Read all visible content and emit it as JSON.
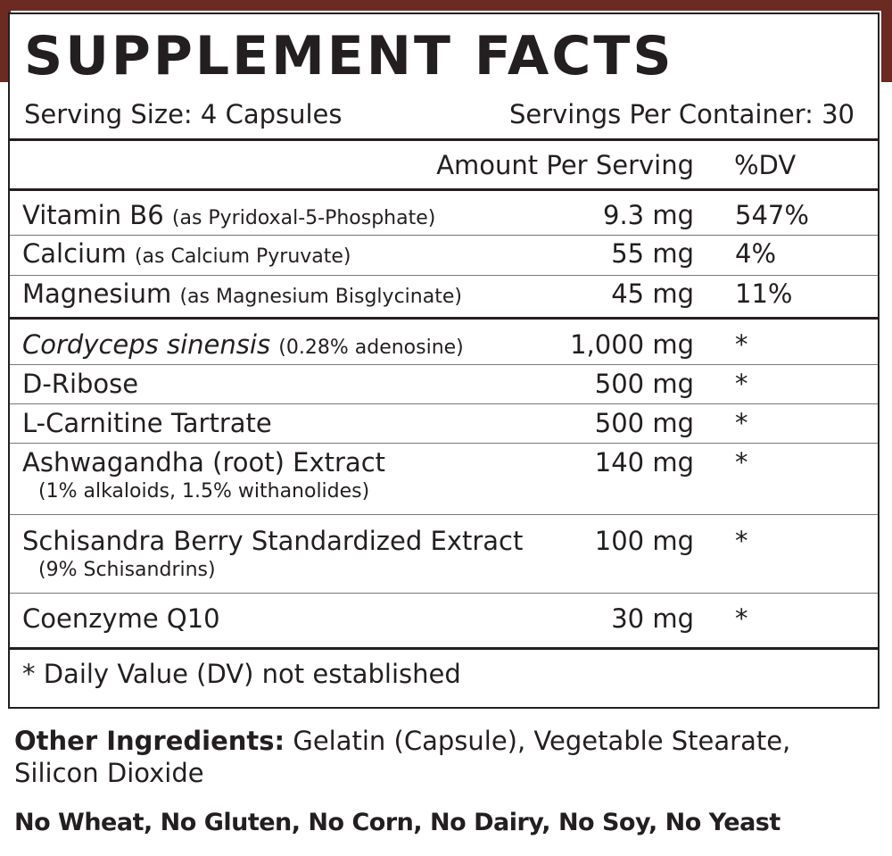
{
  "colors": {
    "border_bar": "#6b2a22",
    "text": "#231f20"
  },
  "label": {
    "title": "SUPPLEMENT FACTS",
    "serving_size": "Serving Size: 4 Capsules",
    "servings_per_container": "Servings Per Container: 30",
    "header_amount": "Amount Per Serving",
    "header_dv": "%DV",
    "vitamins": [
      {
        "name": "Vitamin B6",
        "sub": "(as Pyridoxal-5-Phosphate)",
        "amount": "9.3 mg",
        "dv": "547%"
      },
      {
        "name": "Calcium",
        "sub": "(as Calcium Pyruvate)",
        "amount": "55 mg",
        "dv": "4%"
      },
      {
        "name": "Magnesium",
        "sub": "(as Magnesium Bisglycinate)",
        "amount": "45 mg",
        "dv": "11%"
      }
    ],
    "ingredients": [
      {
        "name": "Cordyceps sinensis",
        "sub": "(0.28% adenosine)",
        "detail": "",
        "amount": "1,000 mg",
        "dv": "*"
      },
      {
        "name": "D-Ribose",
        "sub": "",
        "detail": "",
        "amount": "500 mg",
        "dv": "*"
      },
      {
        "name": "L-Carnitine Tartrate",
        "sub": "",
        "detail": "",
        "amount": "500 mg",
        "dv": "*"
      },
      {
        "name": "Ashwagandha (root) Extract",
        "sub": "",
        "detail": "(1% alkaloids, 1.5% withanolides)",
        "amount": "140 mg",
        "dv": "*"
      },
      {
        "name": "Schisandra Berry Standardized Extract",
        "sub": "",
        "detail": "(9% Schisandrins)",
        "amount": "100 mg",
        "dv": "*"
      },
      {
        "name": "Coenzyme Q10",
        "sub": "",
        "detail": "",
        "amount": "30 mg",
        "dv": "*"
      }
    ],
    "footnote": "* Daily Value (DV) not established"
  },
  "other_ingredients": {
    "label": "Other Ingredients:",
    "text": "Gelatin (Capsule), Vegetable Stearate, Silicon Dioxide"
  },
  "allergens": "No Wheat, No Gluten, No Corn, No Dairy, No Soy, No Yeast"
}
